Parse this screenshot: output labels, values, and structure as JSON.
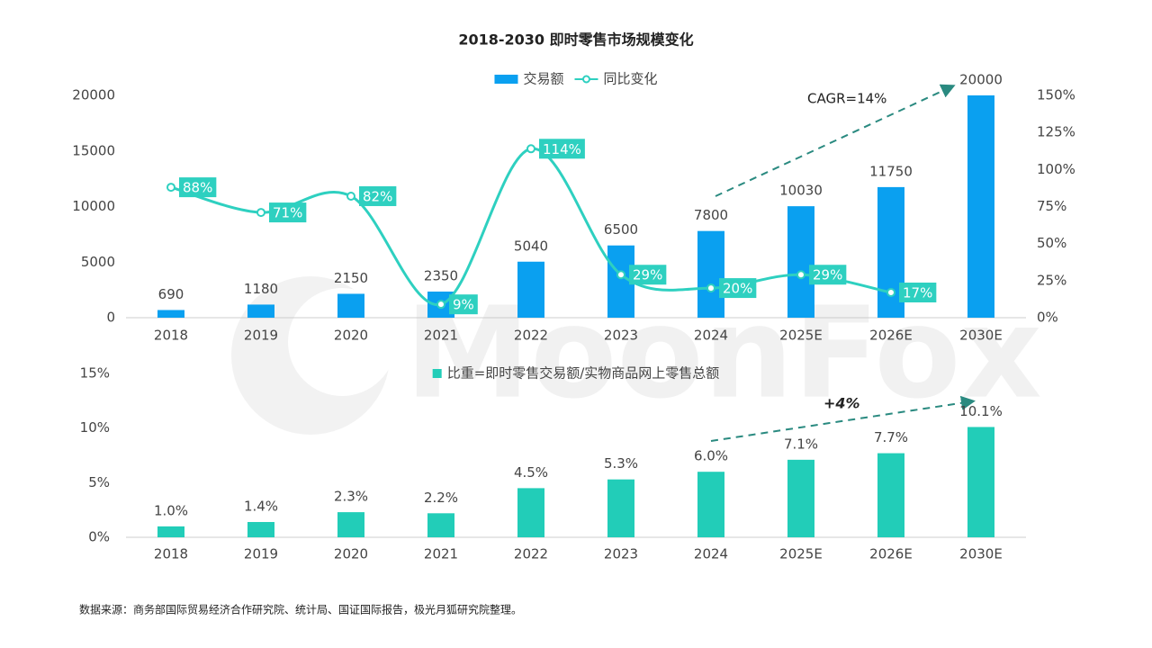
{
  "chart_data": [
    {
      "type": "bar",
      "title": "2018-2030 即时零售市场规模变化",
      "categories": [
        "2018",
        "2019",
        "2020",
        "2021",
        "2022",
        "2023",
        "2024",
        "2025E",
        "2026E",
        "2030E"
      ],
      "series": [
        {
          "name": "交易额",
          "color": "#0aa0f0",
          "values": [
            690,
            1180,
            2150,
            2350,
            5040,
            6500,
            7800,
            10030,
            11750,
            20000
          ]
        },
        {
          "name": "同比变化",
          "type": "line",
          "axis": "y2",
          "color": "#2ed0c0",
          "values": [
            88,
            71,
            82,
            9,
            114,
            29,
            20,
            29,
            17,
            null
          ],
          "value_labels": [
            "88%",
            "71%",
            "82%",
            "9%",
            "114%",
            "29%",
            "20%",
            "29%",
            "17%",
            null
          ]
        }
      ],
      "ylim": [
        0,
        20000
      ],
      "yticks": [
        0,
        5000,
        10000,
        15000,
        20000
      ],
      "y2lim": [
        0,
        150
      ],
      "y2ticks": [
        {
          "value": 0,
          "label": "0%"
        },
        {
          "value": 25,
          "label": "25%"
        },
        {
          "value": 50,
          "label": "50%"
        },
        {
          "value": 75,
          "label": "75%"
        },
        {
          "value": 100,
          "label": "100%"
        },
        {
          "value": 125,
          "label": "125%"
        },
        {
          "value": 150,
          "label": "150%"
        }
      ],
      "annotation": "CAGR=14%"
    },
    {
      "type": "bar",
      "categories": [
        "2018",
        "2019",
        "2020",
        "2021",
        "2022",
        "2023",
        "2024",
        "2025E",
        "2026E",
        "2030E"
      ],
      "series": [
        {
          "name": "比重=即时零售交易额/实物商品网上零售总额",
          "color": "#22cdb8",
          "values": [
            1.0,
            1.4,
            2.3,
            2.2,
            4.5,
            5.3,
            6.0,
            7.1,
            7.7,
            10.1
          ],
          "value_labels": [
            "1.0%",
            "1.4%",
            "2.3%",
            "2.2%",
            "4.5%",
            "5.3%",
            "6.0%",
            "7.1%",
            "7.7%",
            "10.1%"
          ]
        }
      ],
      "ylim": [
        0,
        15
      ],
      "yticks": [
        {
          "value": 0,
          "label": "0%"
        },
        {
          "value": 5,
          "label": "5%"
        },
        {
          "value": 10,
          "label": "10%"
        },
        {
          "value": 15,
          "label": "15%"
        }
      ],
      "annotation": "+4%"
    }
  ],
  "source": "数据来源：商务部国际贸易经济合作研究院、统计局、国证国际报告，极光月狐研究院整理。",
  "watermark": "MoonFox"
}
